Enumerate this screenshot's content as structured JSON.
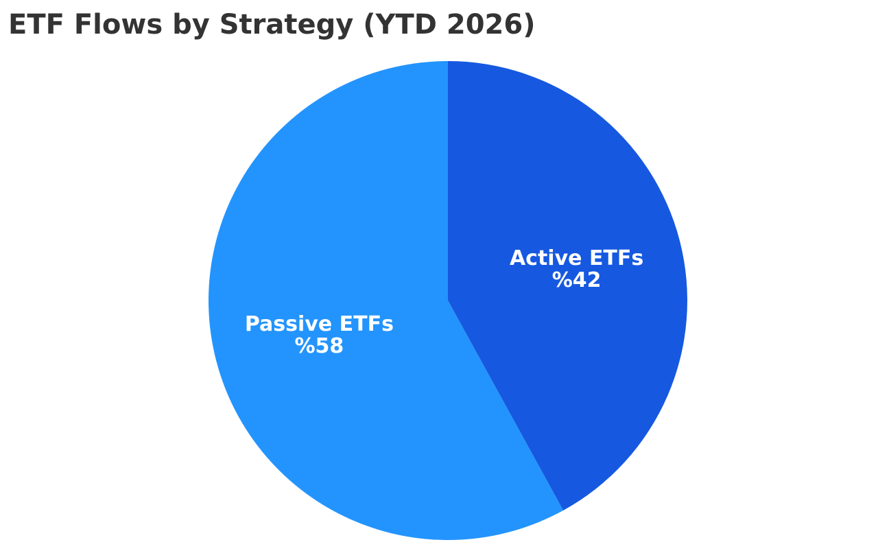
{
  "chart_data": {
    "type": "pie",
    "title": "ETF Flows by Strategy (YTD 2026)",
    "slices": [
      {
        "label": "Active ETFs",
        "value": 42,
        "value_label": "%42",
        "color": "#1659e0"
      },
      {
        "label": "Passive ETFs",
        "value": 58,
        "value_label": "%58",
        "color": "#2394fd"
      }
    ],
    "start_angle": "12 o'clock",
    "direction": "clockwise",
    "legend": "none",
    "labels": "inside slices"
  }
}
